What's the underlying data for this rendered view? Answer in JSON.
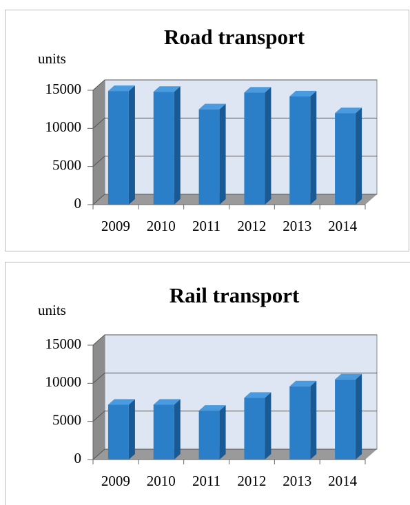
{
  "chart_data": [
    {
      "type": "bar",
      "title": "Road transport",
      "y_label": "units",
      "categories": [
        "2009",
        "2010",
        "2011",
        "2012",
        "2013",
        "2014"
      ],
      "values": [
        14900,
        14800,
        12500,
        14700,
        14200,
        12000
      ],
      "color": "#2a7fc8",
      "ylim": [
        0,
        15000
      ],
      "yticks": [
        0,
        5000,
        10000,
        15000
      ],
      "grid": true
    },
    {
      "type": "bar",
      "title": "Rail transport",
      "y_label": "units",
      "categories": [
        "2009",
        "2010",
        "2011",
        "2012",
        "2013",
        "2014"
      ],
      "values": [
        7200,
        7200,
        6400,
        8100,
        9600,
        10500
      ],
      "color": "#2a7fc8",
      "ylim": [
        0,
        15000
      ],
      "yticks": [
        0,
        5000,
        10000,
        15000
      ],
      "grid": true
    }
  ]
}
